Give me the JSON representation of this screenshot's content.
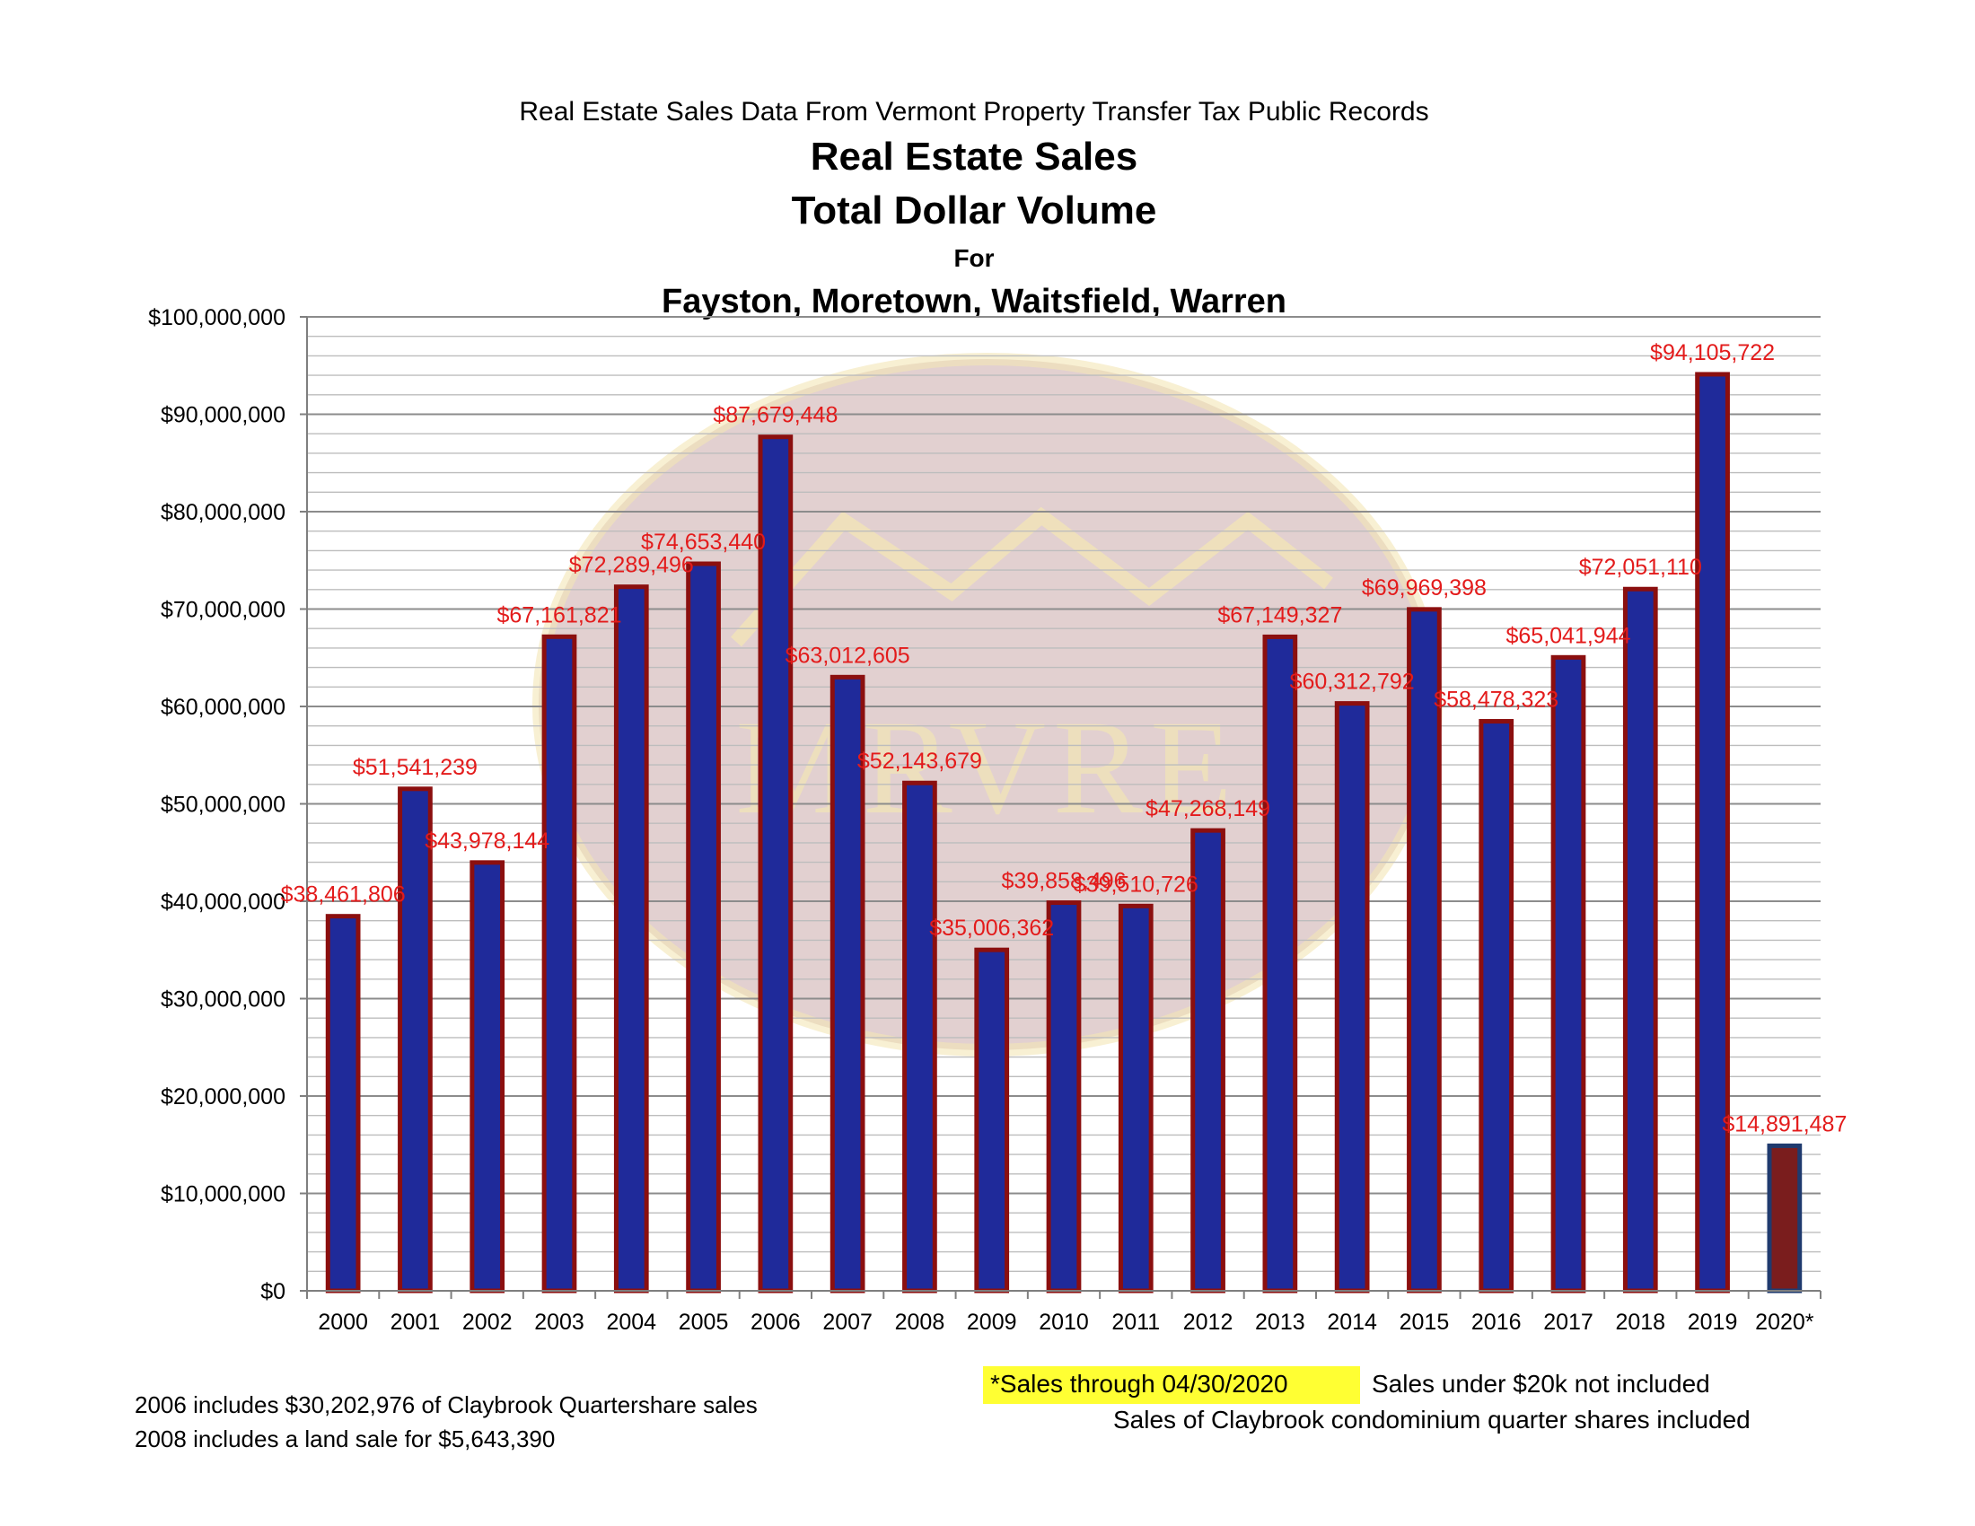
{
  "chart_data": {
    "type": "bar",
    "supertitle": "Real Estate Sales Data From Vermont Property Transfer Tax Public Records",
    "title_lines": [
      "Real Estate Sales",
      "Total Dollar Volume",
      "For",
      "Fayston, Moretown, Waitsfield, Warren"
    ],
    "categories": [
      "2000",
      "2001",
      "2002",
      "2003",
      "2004",
      "2005",
      "2006",
      "2007",
      "2008",
      "2009",
      "2010",
      "2011",
      "2012",
      "2013",
      "2014",
      "2015",
      "2016",
      "2017",
      "2018",
      "2019",
      "2020*"
    ],
    "values": [
      38461806,
      51541239,
      43978144,
      67161821,
      72289496,
      74653440,
      87679448,
      63012605,
      52143679,
      35006362,
      39858496,
      39510726,
      47268149,
      67149327,
      60312792,
      69969398,
      58478323,
      65041944,
      72051110,
      94105722,
      14891487
    ],
    "data_labels": [
      "$38,461,806",
      "$51,541,239",
      "$43,978,144",
      "$67,161,821",
      "$72,289,496",
      "$74,653,440",
      "$87,679,448",
      "$63,012,605",
      "$52,143,679",
      "$35,006,362",
      "$39,858,496",
      "$39,510,726",
      "$47,268,149",
      "$67,149,327",
      "$60,312,792",
      "$69,969,398",
      "$58,478,323",
      "$65,041,944",
      "$72,051,110",
      "$94,105,722",
      "$14,891,487"
    ],
    "ylim": [
      0,
      100000000
    ],
    "yticks": [
      0,
      10000000,
      20000000,
      30000000,
      40000000,
      50000000,
      60000000,
      70000000,
      80000000,
      90000000,
      100000000
    ],
    "ytick_labels": [
      "$0",
      "$10,000,000",
      "$20,000,000",
      "$30,000,000",
      "$40,000,000",
      "$50,000,000",
      "$60,000,000",
      "$70,000,000",
      "$80,000,000",
      "$90,000,000",
      "$100,000,000"
    ],
    "grid": true,
    "minor_grid_step": 2000000,
    "colors": {
      "bar_fill": "#1f2a9a",
      "bar_edge": "#8b0f0f",
      "partial_bar_fill": "#7a1d1d",
      "partial_bar_edge": "#1f3a6e",
      "label": "#e31b1b",
      "grid_major": "#8c8c8c",
      "grid_minor": "#bdbdbd",
      "watermark": "#caa9a9",
      "watermark_accent": "#f3e6b5"
    },
    "watermark_text": "MRVRE"
  },
  "notes": {
    "through": "*Sales through 04/30/2020",
    "under": "Sales under $20k not included",
    "claybrook": "Sales of Claybrook condominium quarter shares included",
    "note_2006": "2006 includes $30,202,976 of Claybrook Quartershare sales",
    "note_2008": "2008 includes a land sale for $5,643,390"
  }
}
